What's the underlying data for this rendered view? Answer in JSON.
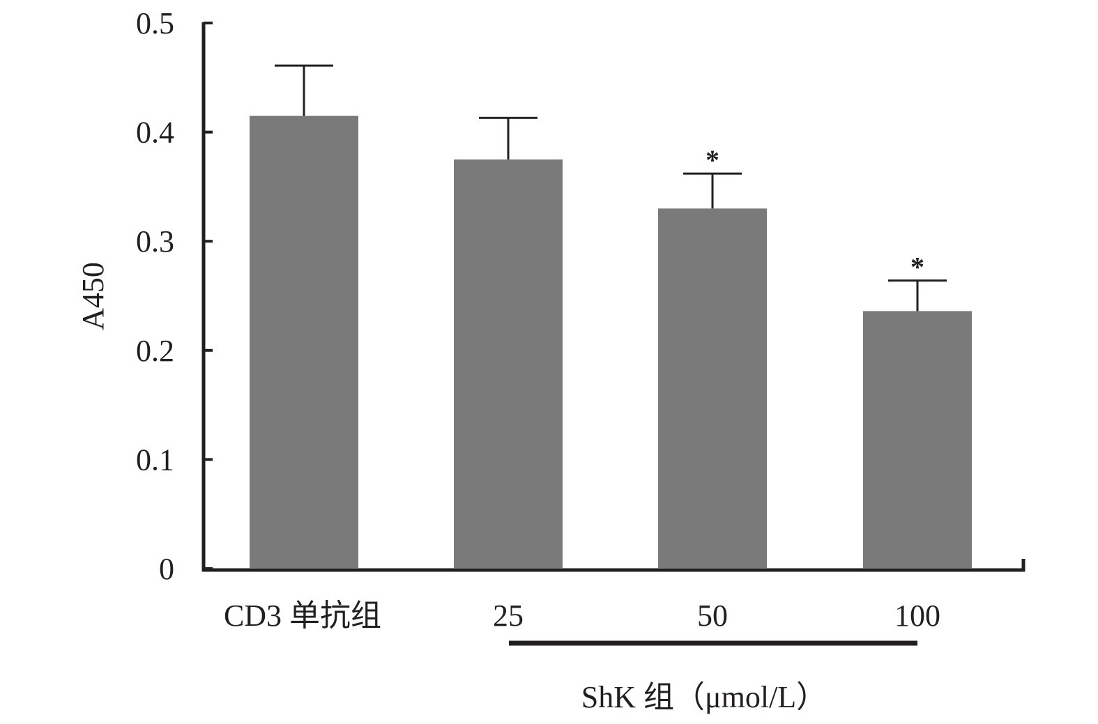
{
  "chart_data": {
    "type": "bar",
    "categories": [
      "CD3 单抗组",
      "25",
      "50",
      "100"
    ],
    "values": [
      0.415,
      0.375,
      0.33,
      0.236
    ],
    "errors": [
      0.046,
      0.038,
      0.032,
      0.028
    ],
    "significance": [
      "",
      "",
      "*",
      "*"
    ],
    "ylabel": "A450",
    "ylim": [
      0,
      0.5
    ],
    "yticks": [
      "0",
      "0.1",
      "0.2",
      "0.3",
      "0.4",
      "0.5"
    ],
    "group_label": "ShK 组（μmol/L）",
    "bar_color": "#7b7a7b",
    "grid": false
  }
}
